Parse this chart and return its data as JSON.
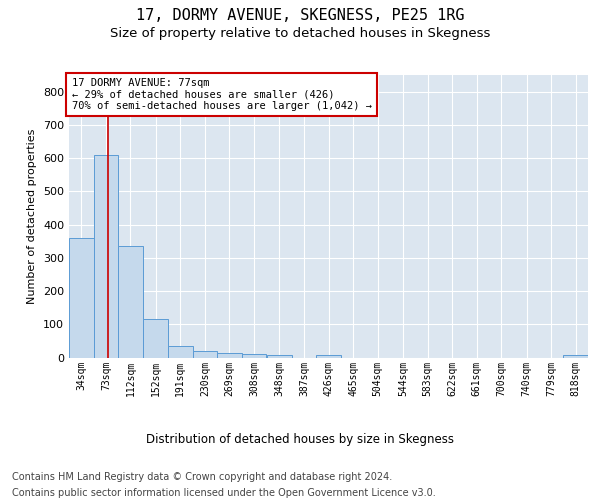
{
  "title": "17, DORMY AVENUE, SKEGNESS, PE25 1RG",
  "subtitle": "Size of property relative to detached houses in Skegness",
  "xlabel": "Distribution of detached houses by size in Skegness",
  "ylabel": "Number of detached properties",
  "bins": [
    34,
    73,
    112,
    152,
    191,
    230,
    269,
    308,
    348,
    387,
    426,
    465,
    504,
    544,
    583,
    622,
    661,
    700,
    740,
    779,
    818
  ],
  "bar_heights": [
    360,
    610,
    335,
    115,
    35,
    20,
    15,
    12,
    8,
    0,
    8,
    0,
    0,
    0,
    0,
    0,
    0,
    0,
    0,
    0,
    8
  ],
  "bar_color": "#c5d9ec",
  "bar_edge_color": "#5b9bd5",
  "property_line_x": 77,
  "property_line_color": "#cc0000",
  "annotation_text": "17 DORMY AVENUE: 77sqm\n← 29% of detached houses are smaller (426)\n70% of semi-detached houses are larger (1,042) →",
  "annotation_box_facecolor": "#ffffff",
  "annotation_box_edgecolor": "#cc0000",
  "ylim": [
    0,
    850
  ],
  "yticks": [
    0,
    100,
    200,
    300,
    400,
    500,
    600,
    700,
    800
  ],
  "footer_line1": "Contains HM Land Registry data © Crown copyright and database right 2024.",
  "footer_line2": "Contains public sector information licensed under the Open Government Licence v3.0.",
  "plot_bg_color": "#dce6f0",
  "grid_color": "#ffffff",
  "title_fontsize": 11,
  "subtitle_fontsize": 9.5,
  "ylabel_fontsize": 8,
  "xtick_fontsize": 7,
  "ytick_fontsize": 8,
  "annotation_fontsize": 7.5,
  "xlabel_fontsize": 8.5,
  "footer_fontsize": 7
}
